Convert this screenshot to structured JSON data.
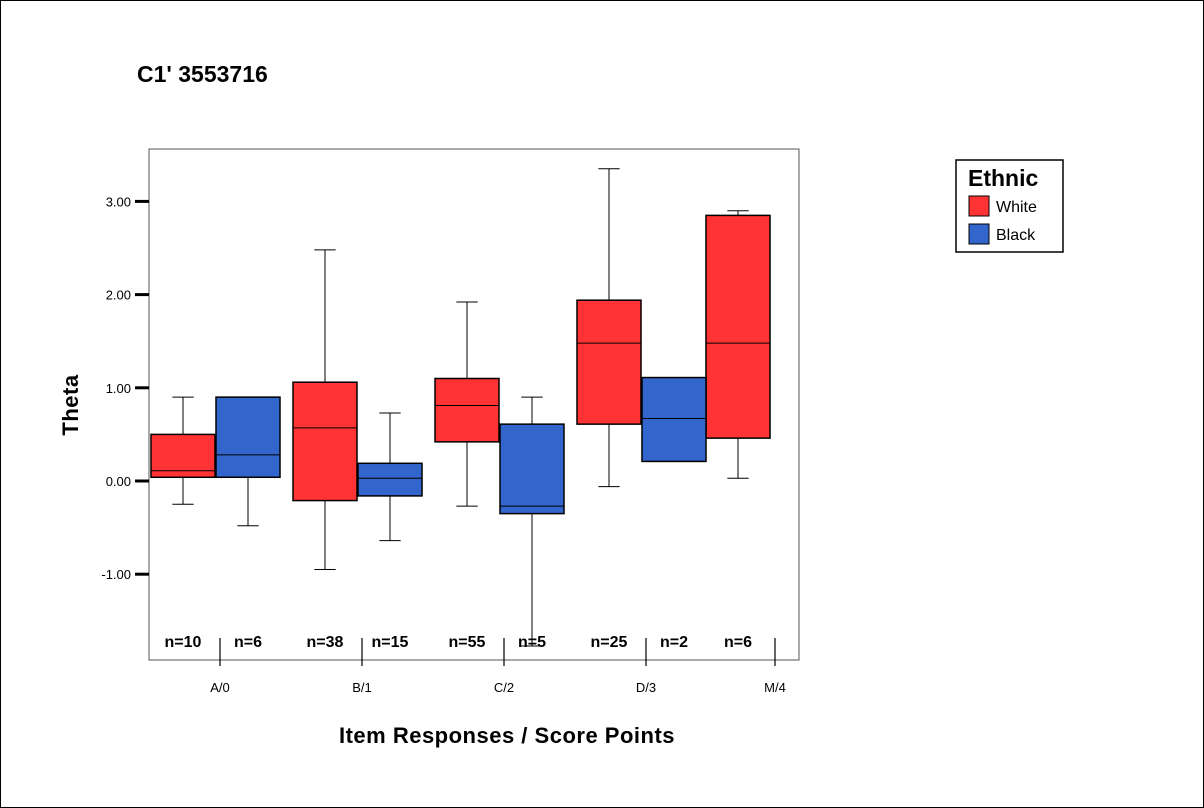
{
  "colors": {
    "white_series": "#ff3333",
    "black_series": "#3366cc",
    "frame": "#000000",
    "plot_border": "#555555"
  },
  "chart_data": {
    "type": "boxplot",
    "title": "C1' 3553716",
    "xlabel": "Item Responses / Score Points",
    "ylabel": "Theta",
    "ylim": [
      -1.9,
      3.55
    ],
    "y_ticks": [
      {
        "value": 3.0,
        "label": "3.00"
      },
      {
        "value": 2.0,
        "label": "2.00"
      },
      {
        "value": 1.0,
        "label": "1.00"
      },
      {
        "value": 0.0,
        "label": "0.00"
      },
      {
        "value": -1.0,
        "label": "-1.00"
      }
    ],
    "categories": [
      "A/0",
      "B/1",
      "C/2",
      "D/3",
      "M/4"
    ],
    "legend": {
      "title": "Ethnic",
      "placement": "top-right",
      "entries": [
        "White",
        "Black"
      ]
    },
    "grid": false,
    "series": [
      {
        "name": "White",
        "color": "#ff3333",
        "boxes": [
          {
            "category": "A/0",
            "min": -0.25,
            "q1": 0.04,
            "median": 0.11,
            "q3": 0.5,
            "max": 0.9,
            "n_label": "n=10"
          },
          {
            "category": "B/1",
            "min": -0.95,
            "q1": -0.21,
            "median": 0.57,
            "q3": 1.06,
            "max": 2.48,
            "n_label": "n=38"
          },
          {
            "category": "C/2",
            "min": -0.27,
            "q1": 0.42,
            "median": 0.81,
            "q3": 1.1,
            "max": 1.92,
            "n_label": "n=55"
          },
          {
            "category": "D/3",
            "min": -0.06,
            "q1": 0.61,
            "median": 1.48,
            "q3": 1.94,
            "max": 3.35,
            "n_label": "n=25"
          },
          {
            "category": "M/4",
            "min": 0.03,
            "q1": 0.46,
            "median": 1.48,
            "q3": 2.85,
            "max": 2.9,
            "n_label": "n=6"
          }
        ]
      },
      {
        "name": "Black",
        "color": "#3366cc",
        "boxes": [
          {
            "category": "A/0",
            "min": -0.48,
            "q1": 0.04,
            "median": 0.28,
            "q3": 0.9,
            "max": 0.9,
            "n_label": "n=6"
          },
          {
            "category": "B/1",
            "min": -0.64,
            "q1": -0.16,
            "median": 0.03,
            "q3": 0.19,
            "max": 0.73,
            "n_label": "n=15"
          },
          {
            "category": "C/2",
            "min": -1.77,
            "q1": -0.35,
            "median": -0.27,
            "q3": 0.61,
            "max": 0.9,
            "n_label": "n=5"
          },
          {
            "category": "D/3",
            "min": 0.21,
            "q1": 0.21,
            "median": 0.67,
            "q3": 1.11,
            "max": 1.11,
            "n_label": "n=2"
          }
        ]
      }
    ]
  }
}
